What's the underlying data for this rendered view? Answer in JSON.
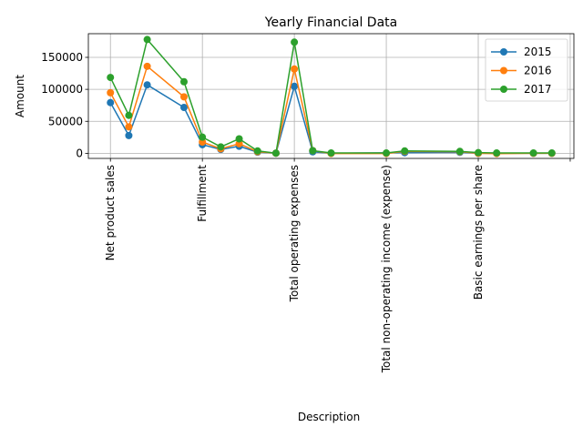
{
  "chart_data": {
    "type": "line",
    "title": "Yearly Financial Data",
    "xlabel": "Description",
    "ylabel": "Amount",
    "ylim": [
      -8000,
      187000
    ],
    "yticks": [
      0,
      50000,
      100000,
      150000
    ],
    "ytick_labels": [
      "0",
      "50000",
      "100000",
      "150000"
    ],
    "xlim": [
      -1.2,
      25.2
    ],
    "xticks": [
      0,
      5,
      10,
      15,
      20,
      25
    ],
    "xtick_labels": [
      "Net product sales",
      "Fulfillment",
      "Total operating expenses",
      "Total non-operating income (expense)",
      "Basic earnings per share",
      ""
    ],
    "grid": true,
    "legend_position": "upper right",
    "series": [
      {
        "name": "2015",
        "color": "#1f77b4",
        "points": [
          [
            0,
            79268
          ],
          [
            1,
            27738
          ],
          [
            2,
            107006
          ],
          [
            4,
            71651
          ],
          [
            5,
            13410
          ],
          [
            6,
            6000
          ],
          [
            7,
            11000
          ],
          [
            8,
            1747
          ],
          [
            9,
            171
          ],
          [
            10,
            104773
          ],
          [
            11,
            2233
          ],
          [
            12,
            0
          ],
          [
            16,
            950
          ],
          [
            19,
            1500
          ],
          [
            20,
            0
          ],
          [
            21,
            0
          ],
          [
            23,
            0
          ],
          [
            24,
            0
          ]
        ]
      },
      {
        "name": "2016",
        "color": "#ff7f0e",
        "points": [
          [
            0,
            94665
          ],
          [
            1,
            41322
          ],
          [
            2,
            135987
          ],
          [
            4,
            88265
          ],
          [
            5,
            17619
          ],
          [
            6,
            7000
          ],
          [
            7,
            15000
          ],
          [
            8,
            2432
          ],
          [
            9,
            167
          ],
          [
            10,
            131801
          ],
          [
            11,
            4186
          ],
          [
            12,
            -300
          ],
          [
            15,
            -300
          ],
          [
            16,
            3000
          ],
          [
            19,
            2500
          ],
          [
            20,
            0
          ],
          [
            21,
            -500
          ],
          [
            23,
            0
          ],
          [
            24,
            0
          ]
        ]
      },
      {
        "name": "2017",
        "color": "#2ca02c",
        "points": [
          [
            0,
            118573
          ],
          [
            1,
            59293
          ],
          [
            2,
            177866
          ],
          [
            4,
            111934
          ],
          [
            5,
            25249
          ],
          [
            6,
            10000
          ],
          [
            7,
            22620
          ],
          [
            8,
            3674
          ],
          [
            9,
            214
          ],
          [
            10,
            173760
          ],
          [
            11,
            4106
          ],
          [
            12,
            500
          ],
          [
            15,
            500
          ],
          [
            16,
            3700
          ],
          [
            19,
            3000
          ],
          [
            20,
            1000
          ],
          [
            21,
            500
          ],
          [
            23,
            500
          ],
          [
            24,
            500
          ]
        ]
      }
    ]
  }
}
